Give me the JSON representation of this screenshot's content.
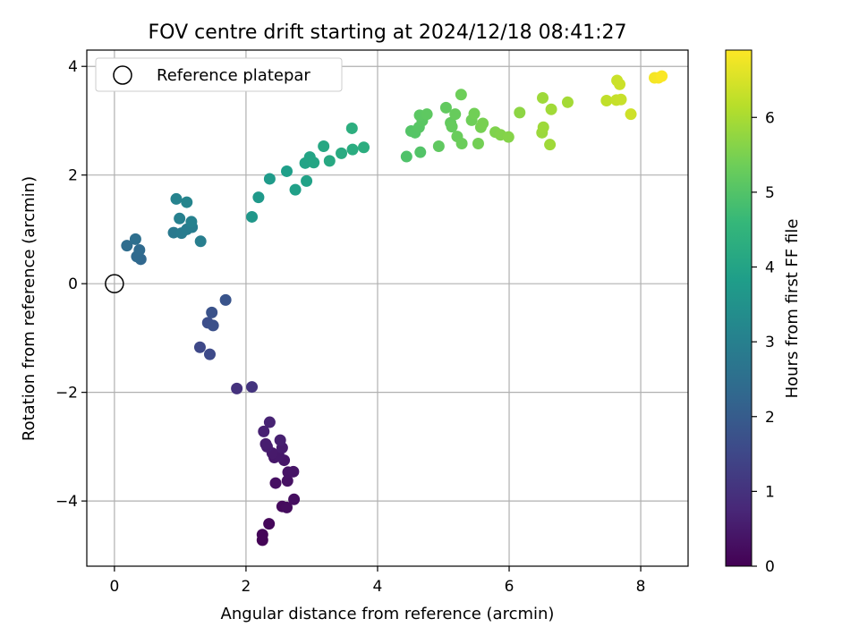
{
  "chart_data": {
    "type": "scatter",
    "title": "FOV centre drift starting at 2024/12/18 08:41:27",
    "xlabel": "Angular distance from reference (arcmin)",
    "ylabel": "Rotation from reference (arcmin)",
    "xlim": [
      -0.42,
      8.72
    ],
    "ylim": [
      -5.2,
      4.3
    ],
    "xticks": [
      0,
      2,
      4,
      6,
      8
    ],
    "xtick_labels": [
      "0",
      "2",
      "4",
      "6",
      "8"
    ],
    "yticks": [
      -4,
      -2,
      0,
      2,
      4
    ],
    "ytick_labels": [
      "−4",
      "−2",
      "0",
      "2",
      "4"
    ],
    "grid": true,
    "legend": {
      "position": "top-left",
      "label": "Reference platepar"
    },
    "reference_point": {
      "x": 0,
      "y": 0
    },
    "colorbar": {
      "label": "Hours from first FF file",
      "range": [
        0,
        6.9
      ],
      "ticks": [
        0,
        1,
        2,
        3,
        4,
        5,
        6
      ],
      "tick_labels": [
        "0",
        "1",
        "2",
        "3",
        "4",
        "5",
        "6"
      ],
      "colormap": [
        "#440154",
        "#482878",
        "#3e4989",
        "#31688e",
        "#26828e",
        "#1f9e89",
        "#35b779",
        "#6ece58",
        "#b5de2b",
        "#fde725"
      ]
    },
    "points": [
      {
        "x": 2.25,
        "y": -4.72,
        "c": 0.05
      },
      {
        "x": 2.25,
        "y": -4.62,
        "c": 0.08
      },
      {
        "x": 2.35,
        "y": -4.42,
        "c": 0.12
      },
      {
        "x": 2.55,
        "y": -4.1,
        "c": 0.18
      },
      {
        "x": 2.62,
        "y": -4.12,
        "c": 0.22
      },
      {
        "x": 2.73,
        "y": -3.97,
        "c": 0.25
      },
      {
        "x": 2.45,
        "y": -3.67,
        "c": 0.3
      },
      {
        "x": 2.63,
        "y": -3.63,
        "c": 0.33
      },
      {
        "x": 2.64,
        "y": -3.47,
        "c": 0.36
      },
      {
        "x": 2.72,
        "y": -3.46,
        "c": 0.38
      },
      {
        "x": 2.58,
        "y": -3.25,
        "c": 0.42
      },
      {
        "x": 2.43,
        "y": -3.2,
        "c": 0.44
      },
      {
        "x": 2.5,
        "y": -3.17,
        "c": 0.47
      },
      {
        "x": 2.4,
        "y": -3.12,
        "c": 0.5
      },
      {
        "x": 2.55,
        "y": -3.02,
        "c": 0.53
      },
      {
        "x": 2.32,
        "y": -3.0,
        "c": 0.55
      },
      {
        "x": 2.3,
        "y": -2.95,
        "c": 0.57
      },
      {
        "x": 2.52,
        "y": -2.88,
        "c": 0.6
      },
      {
        "x": 2.27,
        "y": -2.72,
        "c": 0.63
      },
      {
        "x": 2.36,
        "y": -2.55,
        "c": 0.66
      },
      {
        "x": 1.86,
        "y": -1.93,
        "c": 1.0
      },
      {
        "x": 2.09,
        "y": -1.9,
        "c": 1.05
      },
      {
        "x": 1.3,
        "y": -1.17,
        "c": 1.5
      },
      {
        "x": 1.45,
        "y": -1.3,
        "c": 1.55
      },
      {
        "x": 1.42,
        "y": -0.72,
        "c": 1.65
      },
      {
        "x": 1.5,
        "y": -0.77,
        "c": 1.7
      },
      {
        "x": 1.48,
        "y": -0.53,
        "c": 1.75
      },
      {
        "x": 1.69,
        "y": -0.3,
        "c": 1.8
      },
      {
        "x": 0.4,
        "y": 0.45,
        "c": 2.3
      },
      {
        "x": 0.34,
        "y": 0.5,
        "c": 2.35
      },
      {
        "x": 0.38,
        "y": 0.62,
        "c": 2.4
      },
      {
        "x": 0.19,
        "y": 0.7,
        "c": 2.45
      },
      {
        "x": 0.32,
        "y": 0.82,
        "c": 2.5
      },
      {
        "x": 0.9,
        "y": 0.94,
        "c": 2.8
      },
      {
        "x": 1.02,
        "y": 0.93,
        "c": 2.85
      },
      {
        "x": 1.1,
        "y": 1.0,
        "c": 2.9
      },
      {
        "x": 1.18,
        "y": 1.04,
        "c": 2.92
      },
      {
        "x": 1.31,
        "y": 0.78,
        "c": 2.95
      },
      {
        "x": 0.99,
        "y": 1.2,
        "c": 3.0
      },
      {
        "x": 1.17,
        "y": 1.14,
        "c": 3.05
      },
      {
        "x": 0.94,
        "y": 1.56,
        "c": 3.1
      },
      {
        "x": 1.1,
        "y": 1.5,
        "c": 3.15
      },
      {
        "x": 2.09,
        "y": 1.23,
        "c": 3.65
      },
      {
        "x": 2.19,
        "y": 1.59,
        "c": 3.7
      },
      {
        "x": 2.36,
        "y": 1.93,
        "c": 3.75
      },
      {
        "x": 2.62,
        "y": 2.07,
        "c": 3.85
      },
      {
        "x": 2.75,
        "y": 1.73,
        "c": 3.9
      },
      {
        "x": 2.92,
        "y": 1.89,
        "c": 3.95
      },
      {
        "x": 2.9,
        "y": 2.22,
        "c": 4.0
      },
      {
        "x": 2.97,
        "y": 2.33,
        "c": 4.02
      },
      {
        "x": 3.03,
        "y": 2.23,
        "c": 4.05
      },
      {
        "x": 3.18,
        "y": 2.53,
        "c": 4.1
      },
      {
        "x": 3.27,
        "y": 2.26,
        "c": 4.15
      },
      {
        "x": 3.45,
        "y": 2.4,
        "c": 4.2
      },
      {
        "x": 3.62,
        "y": 2.47,
        "c": 4.25
      },
      {
        "x": 3.79,
        "y": 2.51,
        "c": 4.3
      },
      {
        "x": 3.61,
        "y": 2.86,
        "c": 4.32
      },
      {
        "x": 4.44,
        "y": 2.34,
        "c": 4.95
      },
      {
        "x": 4.65,
        "y": 2.42,
        "c": 5.0
      },
      {
        "x": 4.51,
        "y": 2.81,
        "c": 5.02
      },
      {
        "x": 4.57,
        "y": 2.78,
        "c": 5.05
      },
      {
        "x": 4.63,
        "y": 2.88,
        "c": 5.07
      },
      {
        "x": 4.68,
        "y": 3.0,
        "c": 5.1
      },
      {
        "x": 4.64,
        "y": 3.1,
        "c": 5.12
      },
      {
        "x": 4.75,
        "y": 3.12,
        "c": 5.15
      },
      {
        "x": 4.93,
        "y": 2.53,
        "c": 5.18
      },
      {
        "x": 5.04,
        "y": 3.24,
        "c": 5.2
      },
      {
        "x": 5.11,
        "y": 2.96,
        "c": 5.22
      },
      {
        "x": 5.13,
        "y": 2.89,
        "c": 5.25
      },
      {
        "x": 5.18,
        "y": 3.12,
        "c": 5.27
      },
      {
        "x": 5.21,
        "y": 2.71,
        "c": 5.3
      },
      {
        "x": 5.28,
        "y": 2.58,
        "c": 5.32
      },
      {
        "x": 5.27,
        "y": 3.48,
        "c": 5.35
      },
      {
        "x": 5.43,
        "y": 3.01,
        "c": 5.37
      },
      {
        "x": 5.47,
        "y": 3.13,
        "c": 5.4
      },
      {
        "x": 5.53,
        "y": 2.58,
        "c": 5.42
      },
      {
        "x": 5.57,
        "y": 2.88,
        "c": 5.45
      },
      {
        "x": 5.6,
        "y": 2.95,
        "c": 5.47
      },
      {
        "x": 5.79,
        "y": 2.79,
        "c": 5.55
      },
      {
        "x": 5.87,
        "y": 2.74,
        "c": 5.58
      },
      {
        "x": 5.99,
        "y": 2.7,
        "c": 5.62
      },
      {
        "x": 6.16,
        "y": 3.15,
        "c": 5.7
      },
      {
        "x": 6.5,
        "y": 2.78,
        "c": 5.85
      },
      {
        "x": 6.52,
        "y": 2.88,
        "c": 5.87
      },
      {
        "x": 6.51,
        "y": 3.42,
        "c": 5.88
      },
      {
        "x": 6.62,
        "y": 2.56,
        "c": 5.9
      },
      {
        "x": 6.64,
        "y": 3.21,
        "c": 5.92
      },
      {
        "x": 6.89,
        "y": 3.34,
        "c": 5.95
      },
      {
        "x": 7.48,
        "y": 3.37,
        "c": 6.25
      },
      {
        "x": 7.63,
        "y": 3.38,
        "c": 6.3
      },
      {
        "x": 7.7,
        "y": 3.39,
        "c": 6.32
      },
      {
        "x": 7.64,
        "y": 3.74,
        "c": 6.35
      },
      {
        "x": 7.68,
        "y": 3.67,
        "c": 6.37
      },
      {
        "x": 7.85,
        "y": 3.12,
        "c": 6.4
      },
      {
        "x": 8.21,
        "y": 3.79,
        "c": 6.8
      },
      {
        "x": 8.27,
        "y": 3.79,
        "c": 6.83
      },
      {
        "x": 8.32,
        "y": 3.82,
        "c": 6.87
      }
    ]
  }
}
